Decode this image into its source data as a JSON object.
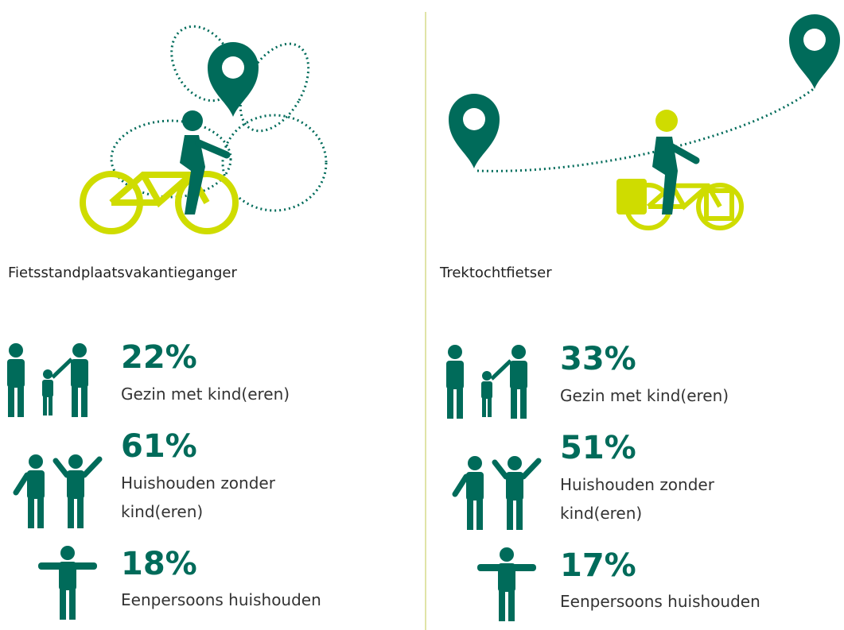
{
  "panels": [
    {
      "title": "Fietsstandplaatsvakantieganger",
      "stats": [
        {
          "value": "22%",
          "label": "Gezin met kind(eren)"
        },
        {
          "value": "61%",
          "label": "Huishouden zonder kind(eren)"
        },
        {
          "value": "18%",
          "label": "Eenpersoons huishouden"
        }
      ]
    },
    {
      "title": "Trektochtfietser",
      "stats": [
        {
          "value": "33%",
          "label": "Gezin met kind(eren)"
        },
        {
          "value": "51%",
          "label": "Huishouden zonder kind(eren)"
        },
        {
          "value": "17%",
          "label": "Eenpersoons huishouden"
        }
      ]
    }
  ]
}
